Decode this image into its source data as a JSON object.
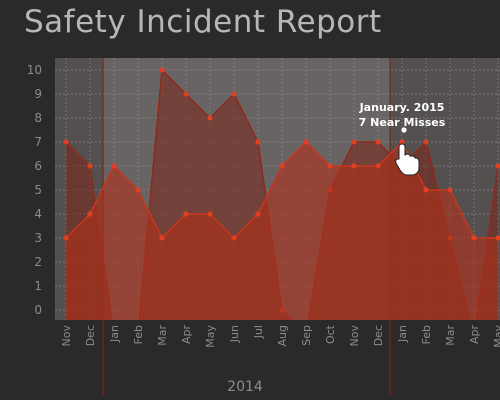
{
  "title": "Safety Incident Report",
  "chart_data": {
    "type": "area",
    "title": "Safety Incident Report",
    "categories": [
      "Nov",
      "Dec",
      "Jan",
      "Feb",
      "Mar",
      "Apr",
      "May",
      "Jun",
      "Jul",
      "Aug",
      "Sep",
      "Oct",
      "Nov",
      "Dec",
      "Jan",
      "Feb",
      "Mar",
      "Apr",
      "May"
    ],
    "year_label": "2014",
    "ylim": [
      0,
      10
    ],
    "yticks": [
      0,
      1,
      2,
      3,
      4,
      5,
      6,
      7,
      8,
      9,
      10
    ],
    "grid": true,
    "series": [
      {
        "values": [
          7,
          6,
          -1,
          -1,
          10,
          9,
          8,
          9,
          7,
          0,
          -1,
          5,
          7,
          7,
          6,
          7,
          3,
          -1,
          6
        ],
        "color": "#8e2a1c"
      },
      {
        "values": [
          3,
          4,
          6,
          5,
          3,
          4,
          4,
          3,
          4,
          6,
          7,
          6,
          6,
          6,
          7,
          5,
          5,
          3,
          3
        ],
        "color": "#c9361e"
      }
    ],
    "tooltip": {
      "category": "January. 2015",
      "label_1": "January. 2015",
      "label_2": "7 Near Misses",
      "value": 7
    }
  },
  "colors": {
    "background": "#2b2a2a",
    "plot_bg_dark": "#545050",
    "plot_bg_light": "#6f6b6a",
    "grid": "#8a8584",
    "series_dark": "#8e2a1c",
    "series_light": "#c9361e",
    "marker": "#e0401f"
  },
  "icons": {
    "cursor": "hand-pointer-icon"
  }
}
